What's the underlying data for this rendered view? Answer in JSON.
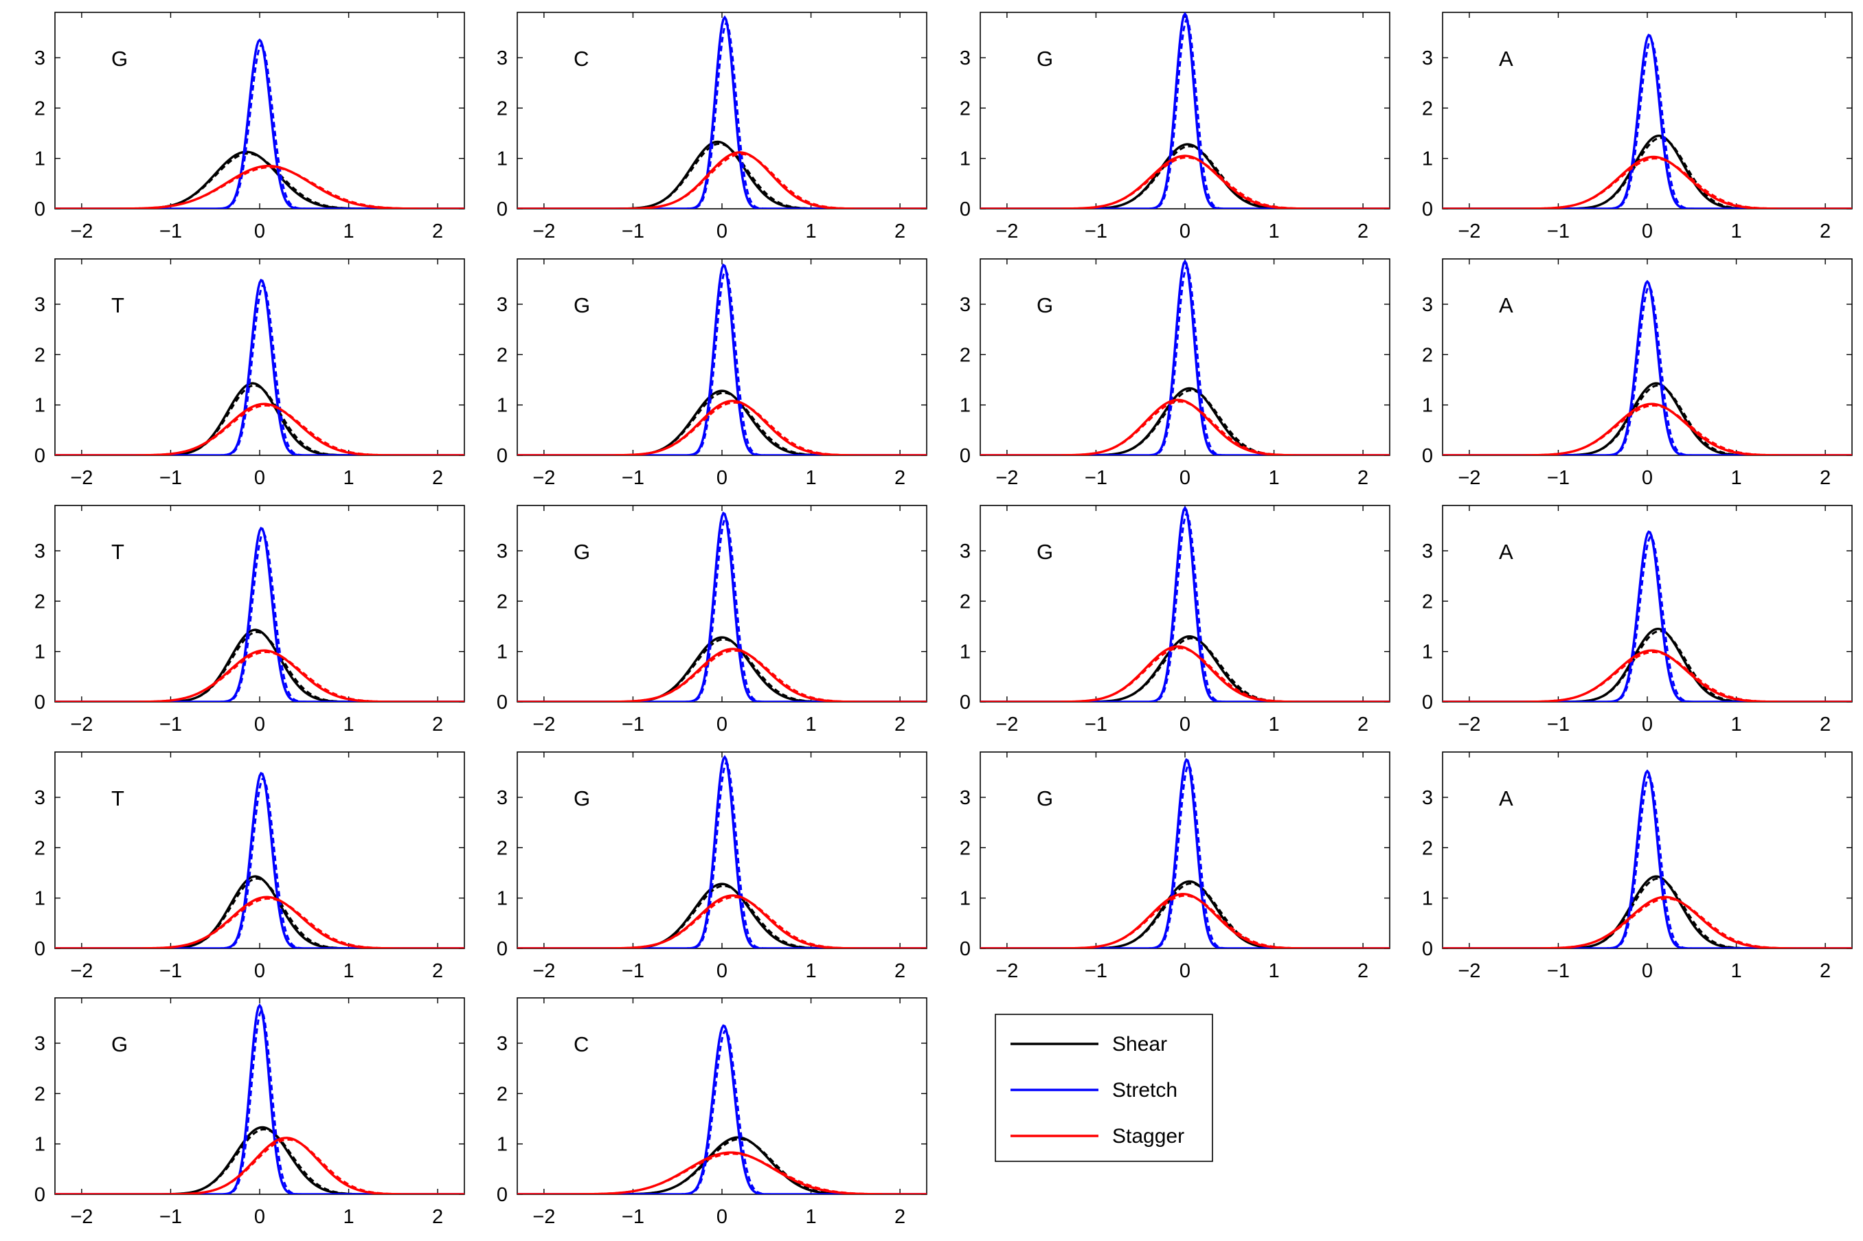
{
  "chart_data": [
    {
      "type": "line",
      "label": "G",
      "xlim": [
        -2.3,
        2.3
      ],
      "ylim": [
        0,
        3.9
      ],
      "xticks": [
        -2,
        -1,
        0,
        1,
        2
      ],
      "yticks": [
        0,
        1,
        2,
        3
      ],
      "series": [
        {
          "name": "Shear",
          "color": "#000000",
          "mean": -0.15,
          "peak": 1.13
        },
        {
          "name": "Stretch",
          "color": "#0000ff",
          "mean": 0.0,
          "peak": 3.35
        },
        {
          "name": "Stagger",
          "color": "#ff0000",
          "mean": 0.1,
          "peak": 0.85
        }
      ]
    },
    {
      "type": "line",
      "label": "C",
      "xlim": [
        -2.3,
        2.3
      ],
      "ylim": [
        0,
        3.9
      ],
      "xticks": [
        -2,
        -1,
        0,
        1,
        2
      ],
      "yticks": [
        0,
        1,
        2,
        3
      ],
      "series": [
        {
          "name": "Shear",
          "color": "#000000",
          "mean": -0.05,
          "peak": 1.33
        },
        {
          "name": "Stretch",
          "color": "#0000ff",
          "mean": 0.03,
          "peak": 3.8
        },
        {
          "name": "Stagger",
          "color": "#ff0000",
          "mean": 0.2,
          "peak": 1.12
        }
      ]
    },
    {
      "type": "line",
      "label": "G",
      "xlim": [
        -2.3,
        2.3
      ],
      "ylim": [
        0,
        3.9
      ],
      "xticks": [
        -2,
        -1,
        0,
        1,
        2
      ],
      "yticks": [
        0,
        1,
        2,
        3
      ],
      "series": [
        {
          "name": "Shear",
          "color": "#000000",
          "mean": 0.03,
          "peak": 1.28
        },
        {
          "name": "Stretch",
          "color": "#0000ff",
          "mean": 0.0,
          "peak": 3.87
        },
        {
          "name": "Stagger",
          "color": "#ff0000",
          "mean": 0.0,
          "peak": 1.05
        }
      ]
    },
    {
      "type": "line",
      "label": "A",
      "xlim": [
        -2.3,
        2.3
      ],
      "ylim": [
        0,
        3.9
      ],
      "xticks": [
        -2,
        -1,
        0,
        1,
        2
      ],
      "yticks": [
        0,
        1,
        2,
        3
      ],
      "series": [
        {
          "name": "Shear",
          "color": "#000000",
          "mean": 0.13,
          "peak": 1.45
        },
        {
          "name": "Stretch",
          "color": "#0000ff",
          "mean": 0.02,
          "peak": 3.45
        },
        {
          "name": "Stagger",
          "color": "#ff0000",
          "mean": 0.07,
          "peak": 1.03
        }
      ]
    },
    {
      "type": "line",
      "label": "T",
      "xlim": [
        -2.3,
        2.3
      ],
      "ylim": [
        0,
        3.9
      ],
      "xticks": [
        -2,
        -1,
        0,
        1,
        2
      ],
      "yticks": [
        0,
        1,
        2,
        3
      ],
      "series": [
        {
          "name": "Shear",
          "color": "#000000",
          "mean": -0.08,
          "peak": 1.43
        },
        {
          "name": "Stretch",
          "color": "#0000ff",
          "mean": 0.02,
          "peak": 3.48
        },
        {
          "name": "Stagger",
          "color": "#ff0000",
          "mean": 0.05,
          "peak": 1.02
        }
      ]
    },
    {
      "type": "line",
      "label": "G",
      "xlim": [
        -2.3,
        2.3
      ],
      "ylim": [
        0,
        3.9
      ],
      "xticks": [
        -2,
        -1,
        0,
        1,
        2
      ],
      "yticks": [
        0,
        1,
        2,
        3
      ],
      "series": [
        {
          "name": "Shear",
          "color": "#000000",
          "mean": 0.0,
          "peak": 1.28
        },
        {
          "name": "Stretch",
          "color": "#0000ff",
          "mean": 0.02,
          "peak": 3.78
        },
        {
          "name": "Stagger",
          "color": "#ff0000",
          "mean": 0.12,
          "peak": 1.08
        }
      ]
    },
    {
      "type": "line",
      "label": "G",
      "xlim": [
        -2.3,
        2.3
      ],
      "ylim": [
        0,
        3.9
      ],
      "xticks": [
        -2,
        -1,
        0,
        1,
        2
      ],
      "yticks": [
        0,
        1,
        2,
        3
      ],
      "series": [
        {
          "name": "Shear",
          "color": "#000000",
          "mean": 0.05,
          "peak": 1.33
        },
        {
          "name": "Stretch",
          "color": "#0000ff",
          "mean": 0.0,
          "peak": 3.85
        },
        {
          "name": "Stagger",
          "color": "#ff0000",
          "mean": -0.08,
          "peak": 1.1
        }
      ]
    },
    {
      "type": "line",
      "label": "A",
      "xlim": [
        -2.3,
        2.3
      ],
      "ylim": [
        0,
        3.9
      ],
      "xticks": [
        -2,
        -1,
        0,
        1,
        2
      ],
      "yticks": [
        0,
        1,
        2,
        3
      ],
      "series": [
        {
          "name": "Shear",
          "color": "#000000",
          "mean": 0.1,
          "peak": 1.43
        },
        {
          "name": "Stretch",
          "color": "#0000ff",
          "mean": 0.0,
          "peak": 3.45
        },
        {
          "name": "Stagger",
          "color": "#ff0000",
          "mean": 0.05,
          "peak": 1.02
        }
      ]
    },
    {
      "type": "line",
      "label": "T",
      "xlim": [
        -2.3,
        2.3
      ],
      "ylim": [
        0,
        3.9
      ],
      "xticks": [
        -2,
        -1,
        0,
        1,
        2
      ],
      "yticks": [
        0,
        1,
        2,
        3
      ],
      "series": [
        {
          "name": "Shear",
          "color": "#000000",
          "mean": -0.05,
          "peak": 1.43
        },
        {
          "name": "Stretch",
          "color": "#0000ff",
          "mean": 0.02,
          "peak": 3.45
        },
        {
          "name": "Stagger",
          "color": "#ff0000",
          "mean": 0.05,
          "peak": 1.02
        }
      ]
    },
    {
      "type": "line",
      "label": "G",
      "xlim": [
        -2.3,
        2.3
      ],
      "ylim": [
        0,
        3.9
      ],
      "xticks": [
        -2,
        -1,
        0,
        1,
        2
      ],
      "yticks": [
        0,
        1,
        2,
        3
      ],
      "series": [
        {
          "name": "Shear",
          "color": "#000000",
          "mean": 0.0,
          "peak": 1.28
        },
        {
          "name": "Stretch",
          "color": "#0000ff",
          "mean": 0.02,
          "peak": 3.75
        },
        {
          "name": "Stagger",
          "color": "#ff0000",
          "mean": 0.12,
          "peak": 1.05
        }
      ]
    },
    {
      "type": "line",
      "label": "G",
      "xlim": [
        -2.3,
        2.3
      ],
      "ylim": [
        0,
        3.9
      ],
      "xticks": [
        -2,
        -1,
        0,
        1,
        2
      ],
      "yticks": [
        0,
        1,
        2,
        3
      ],
      "series": [
        {
          "name": "Shear",
          "color": "#000000",
          "mean": 0.05,
          "peak": 1.3
        },
        {
          "name": "Stretch",
          "color": "#0000ff",
          "mean": 0.0,
          "peak": 3.85
        },
        {
          "name": "Stagger",
          "color": "#ff0000",
          "mean": -0.08,
          "peak": 1.1
        }
      ]
    },
    {
      "type": "line",
      "label": "A",
      "xlim": [
        -2.3,
        2.3
      ],
      "ylim": [
        0,
        3.9
      ],
      "xticks": [
        -2,
        -1,
        0,
        1,
        2
      ],
      "yticks": [
        0,
        1,
        2,
        3
      ],
      "series": [
        {
          "name": "Shear",
          "color": "#000000",
          "mean": 0.12,
          "peak": 1.45
        },
        {
          "name": "Stretch",
          "color": "#0000ff",
          "mean": 0.02,
          "peak": 3.38
        },
        {
          "name": "Stagger",
          "color": "#ff0000",
          "mean": 0.05,
          "peak": 1.02
        }
      ]
    },
    {
      "type": "line",
      "label": "T",
      "xlim": [
        -2.3,
        2.3
      ],
      "ylim": [
        0,
        3.9
      ],
      "xticks": [
        -2,
        -1,
        0,
        1,
        2
      ],
      "yticks": [
        0,
        1,
        2,
        3
      ],
      "series": [
        {
          "name": "Shear",
          "color": "#000000",
          "mean": -0.05,
          "peak": 1.43
        },
        {
          "name": "Stretch",
          "color": "#0000ff",
          "mean": 0.02,
          "peak": 3.48
        },
        {
          "name": "Stagger",
          "color": "#ff0000",
          "mean": 0.08,
          "peak": 1.02
        }
      ]
    },
    {
      "type": "line",
      "label": "G",
      "xlim": [
        -2.3,
        2.3
      ],
      "ylim": [
        0,
        3.9
      ],
      "xticks": [
        -2,
        -1,
        0,
        1,
        2
      ],
      "yticks": [
        0,
        1,
        2,
        3
      ],
      "series": [
        {
          "name": "Shear",
          "color": "#000000",
          "mean": 0.0,
          "peak": 1.28
        },
        {
          "name": "Stretch",
          "color": "#0000ff",
          "mean": 0.03,
          "peak": 3.8
        },
        {
          "name": "Stagger",
          "color": "#ff0000",
          "mean": 0.12,
          "peak": 1.05
        }
      ]
    },
    {
      "type": "line",
      "label": "G",
      "xlim": [
        -2.3,
        2.3
      ],
      "ylim": [
        0,
        3.9
      ],
      "xticks": [
        -2,
        -1,
        0,
        1,
        2
      ],
      "yticks": [
        0,
        1,
        2,
        3
      ],
      "series": [
        {
          "name": "Shear",
          "color": "#000000",
          "mean": 0.05,
          "peak": 1.33
        },
        {
          "name": "Stretch",
          "color": "#0000ff",
          "mean": 0.02,
          "peak": 3.75
        },
        {
          "name": "Stagger",
          "color": "#ff0000",
          "mean": -0.02,
          "peak": 1.08
        }
      ]
    },
    {
      "type": "line",
      "label": "A",
      "xlim": [
        -2.3,
        2.3
      ],
      "ylim": [
        0,
        3.9
      ],
      "xticks": [
        -2,
        -1,
        0,
        1,
        2
      ],
      "yticks": [
        0,
        1,
        2,
        3
      ],
      "series": [
        {
          "name": "Shear",
          "color": "#000000",
          "mean": 0.1,
          "peak": 1.43
        },
        {
          "name": "Stretch",
          "color": "#0000ff",
          "mean": 0.0,
          "peak": 3.52
        },
        {
          "name": "Stagger",
          "color": "#ff0000",
          "mean": 0.2,
          "peak": 1.02
        }
      ]
    },
    {
      "type": "line",
      "label": "G",
      "xlim": [
        -2.3,
        2.3
      ],
      "ylim": [
        0,
        3.9
      ],
      "xticks": [
        -2,
        -1,
        0,
        1,
        2
      ],
      "yticks": [
        0,
        1,
        2,
        3
      ],
      "series": [
        {
          "name": "Shear",
          "color": "#000000",
          "mean": 0.03,
          "peak": 1.33
        },
        {
          "name": "Stretch",
          "color": "#0000ff",
          "mean": 0.0,
          "peak": 3.75
        },
        {
          "name": "Stagger",
          "color": "#ff0000",
          "mean": 0.3,
          "peak": 1.12
        }
      ]
    },
    {
      "type": "line",
      "label": "C",
      "xlim": [
        -2.3,
        2.3
      ],
      "ylim": [
        0,
        3.9
      ],
      "xticks": [
        -2,
        -1,
        0,
        1,
        2
      ],
      "yticks": [
        0,
        1,
        2,
        3
      ],
      "series": [
        {
          "name": "Shear",
          "color": "#000000",
          "mean": 0.18,
          "peak": 1.13
        },
        {
          "name": "Stretch",
          "color": "#0000ff",
          "mean": 0.02,
          "peak": 3.35
        },
        {
          "name": "Stagger",
          "color": "#ff0000",
          "mean": 0.1,
          "peak": 0.83
        }
      ]
    }
  ],
  "legend": {
    "placement": "row-5-column-3",
    "entries": [
      {
        "name": "Shear",
        "color": "#000000"
      },
      {
        "name": "Stretch",
        "color": "#0000ff"
      },
      {
        "name": "Stagger",
        "color": "#ff0000"
      }
    ]
  }
}
